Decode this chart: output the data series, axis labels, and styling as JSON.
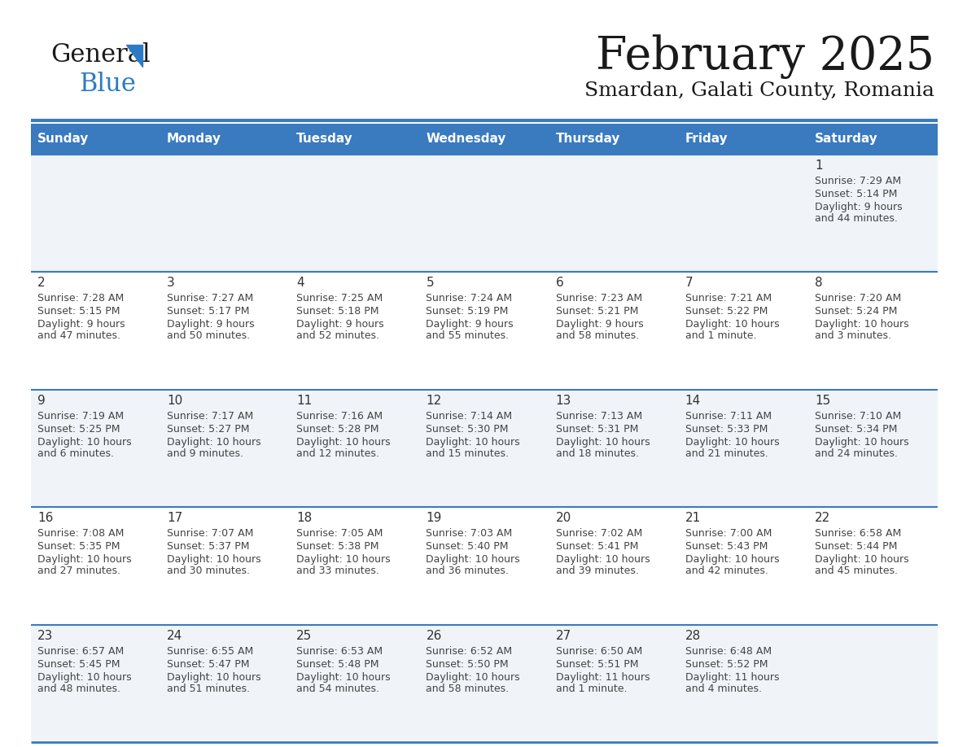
{
  "title": "February 2025",
  "subtitle": "Smardan, Galati County, Romania",
  "header_color": "#3a7abf",
  "header_text_color": "#ffffff",
  "days_of_week": [
    "Sunday",
    "Monday",
    "Tuesday",
    "Wednesday",
    "Thursday",
    "Friday",
    "Saturday"
  ],
  "separator_color": "#3a7abf",
  "row_bg_even": "#f0f4f8",
  "row_bg_odd": "#ffffff",
  "date_color": "#333333",
  "text_color": "#444444",
  "bg_color": "#ffffff",
  "calendar": [
    [
      {
        "day": null,
        "sunrise": null,
        "sunset": null,
        "daylight": null
      },
      {
        "day": null,
        "sunrise": null,
        "sunset": null,
        "daylight": null
      },
      {
        "day": null,
        "sunrise": null,
        "sunset": null,
        "daylight": null
      },
      {
        "day": null,
        "sunrise": null,
        "sunset": null,
        "daylight": null
      },
      {
        "day": null,
        "sunrise": null,
        "sunset": null,
        "daylight": null
      },
      {
        "day": null,
        "sunrise": null,
        "sunset": null,
        "daylight": null
      },
      {
        "day": 1,
        "sunrise": "7:29 AM",
        "sunset": "5:14 PM",
        "daylight": "9 hours\nand 44 minutes."
      }
    ],
    [
      {
        "day": 2,
        "sunrise": "7:28 AM",
        "sunset": "5:15 PM",
        "daylight": "9 hours\nand 47 minutes."
      },
      {
        "day": 3,
        "sunrise": "7:27 AM",
        "sunset": "5:17 PM",
        "daylight": "9 hours\nand 50 minutes."
      },
      {
        "day": 4,
        "sunrise": "7:25 AM",
        "sunset": "5:18 PM",
        "daylight": "9 hours\nand 52 minutes."
      },
      {
        "day": 5,
        "sunrise": "7:24 AM",
        "sunset": "5:19 PM",
        "daylight": "9 hours\nand 55 minutes."
      },
      {
        "day": 6,
        "sunrise": "7:23 AM",
        "sunset": "5:21 PM",
        "daylight": "9 hours\nand 58 minutes."
      },
      {
        "day": 7,
        "sunrise": "7:21 AM",
        "sunset": "5:22 PM",
        "daylight": "10 hours\nand 1 minute."
      },
      {
        "day": 8,
        "sunrise": "7:20 AM",
        "sunset": "5:24 PM",
        "daylight": "10 hours\nand 3 minutes."
      }
    ],
    [
      {
        "day": 9,
        "sunrise": "7:19 AM",
        "sunset": "5:25 PM",
        "daylight": "10 hours\nand 6 minutes."
      },
      {
        "day": 10,
        "sunrise": "7:17 AM",
        "sunset": "5:27 PM",
        "daylight": "10 hours\nand 9 minutes."
      },
      {
        "day": 11,
        "sunrise": "7:16 AM",
        "sunset": "5:28 PM",
        "daylight": "10 hours\nand 12 minutes."
      },
      {
        "day": 12,
        "sunrise": "7:14 AM",
        "sunset": "5:30 PM",
        "daylight": "10 hours\nand 15 minutes."
      },
      {
        "day": 13,
        "sunrise": "7:13 AM",
        "sunset": "5:31 PM",
        "daylight": "10 hours\nand 18 minutes."
      },
      {
        "day": 14,
        "sunrise": "7:11 AM",
        "sunset": "5:33 PM",
        "daylight": "10 hours\nand 21 minutes."
      },
      {
        "day": 15,
        "sunrise": "7:10 AM",
        "sunset": "5:34 PM",
        "daylight": "10 hours\nand 24 minutes."
      }
    ],
    [
      {
        "day": 16,
        "sunrise": "7:08 AM",
        "sunset": "5:35 PM",
        "daylight": "10 hours\nand 27 minutes."
      },
      {
        "day": 17,
        "sunrise": "7:07 AM",
        "sunset": "5:37 PM",
        "daylight": "10 hours\nand 30 minutes."
      },
      {
        "day": 18,
        "sunrise": "7:05 AM",
        "sunset": "5:38 PM",
        "daylight": "10 hours\nand 33 minutes."
      },
      {
        "day": 19,
        "sunrise": "7:03 AM",
        "sunset": "5:40 PM",
        "daylight": "10 hours\nand 36 minutes."
      },
      {
        "day": 20,
        "sunrise": "7:02 AM",
        "sunset": "5:41 PM",
        "daylight": "10 hours\nand 39 minutes."
      },
      {
        "day": 21,
        "sunrise": "7:00 AM",
        "sunset": "5:43 PM",
        "daylight": "10 hours\nand 42 minutes."
      },
      {
        "day": 22,
        "sunrise": "6:58 AM",
        "sunset": "5:44 PM",
        "daylight": "10 hours\nand 45 minutes."
      }
    ],
    [
      {
        "day": 23,
        "sunrise": "6:57 AM",
        "sunset": "5:45 PM",
        "daylight": "10 hours\nand 48 minutes."
      },
      {
        "day": 24,
        "sunrise": "6:55 AM",
        "sunset": "5:47 PM",
        "daylight": "10 hours\nand 51 minutes."
      },
      {
        "day": 25,
        "sunrise": "6:53 AM",
        "sunset": "5:48 PM",
        "daylight": "10 hours\nand 54 minutes."
      },
      {
        "day": 26,
        "sunrise": "6:52 AM",
        "sunset": "5:50 PM",
        "daylight": "10 hours\nand 58 minutes."
      },
      {
        "day": 27,
        "sunrise": "6:50 AM",
        "sunset": "5:51 PM",
        "daylight": "11 hours\nand 1 minute."
      },
      {
        "day": 28,
        "sunrise": "6:48 AM",
        "sunset": "5:52 PM",
        "daylight": "11 hours\nand 4 minutes."
      },
      {
        "day": null,
        "sunrise": null,
        "sunset": null,
        "daylight": null
      }
    ]
  ],
  "logo_color_general": "#1a1a1a",
  "logo_color_blue": "#2b7bc4",
  "logo_triangle_color": "#2b7bc4",
  "title_fontsize": 40,
  "subtitle_fontsize": 18,
  "header_fontsize": 11,
  "day_num_fontsize": 11,
  "cell_text_fontsize": 9
}
